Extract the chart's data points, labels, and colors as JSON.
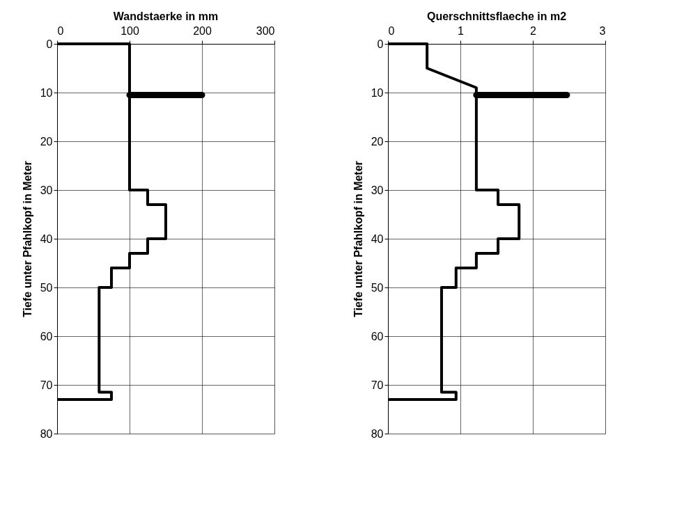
{
  "chart_data": [
    {
      "type": "line",
      "title": "Wandstaerke in mm",
      "ylabel": "Tiefe unter Pfahlkopf in Meter",
      "xlim": [
        0,
        300
      ],
      "xticks": [
        0,
        100,
        200,
        300
      ],
      "ylim": [
        80,
        0
      ],
      "yticks": [
        0,
        10,
        20,
        30,
        40,
        50,
        60,
        70,
        80
      ],
      "grid": true,
      "marker": "none",
      "line_style": "solid",
      "series": [
        {
          "color": "#000000",
          "x": [
            0,
            100,
            100,
            125,
            125,
            150,
            150,
            125,
            125,
            100,
            100,
            75,
            75,
            58,
            58,
            75,
            75,
            0
          ],
          "values": [
            0,
            0,
            30,
            30,
            33,
            33,
            40,
            40,
            43,
            43,
            46,
            46,
            50,
            50,
            71.5,
            71.5,
            73,
            73
          ]
        },
        {
          "color": "#000000",
          "x": [
            100,
            200
          ],
          "values": [
            10.5,
            10.5
          ]
        }
      ]
    },
    {
      "type": "line",
      "title": "Querschnittsflaeche in m2",
      "ylabel": "Tiefe unter Pfahlkopf in Meter",
      "xlim": [
        0,
        3
      ],
      "xticks": [
        0,
        1,
        2,
        3
      ],
      "ylim": [
        80,
        0
      ],
      "yticks": [
        0,
        10,
        20,
        30,
        40,
        50,
        60,
        70,
        80
      ],
      "grid": true,
      "marker": "none",
      "line_style": "solid",
      "series": [
        {
          "color": "#000000",
          "x": [
            0,
            0.54,
            0.54,
            1.22,
            1.22,
            1.52,
            1.52,
            1.81,
            1.81,
            1.52,
            1.52,
            1.22,
            1.22,
            0.94,
            0.94,
            0.74,
            0.74,
            0.94,
            0.94,
            0
          ],
          "values": [
            0,
            0,
            5,
            9,
            30,
            30,
            33,
            33,
            40,
            40,
            43,
            43,
            46,
            46,
            50,
            50,
            71.5,
            71.5,
            73,
            73
          ]
        },
        {
          "color": "#000000",
          "x": [
            1.22,
            2.47
          ],
          "values": [
            10.5,
            10.5
          ]
        }
      ]
    }
  ]
}
